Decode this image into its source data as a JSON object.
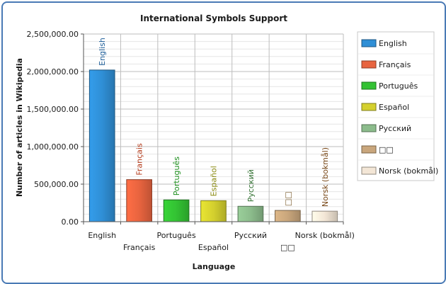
{
  "chart_data": {
    "type": "bar",
    "title": "International Symbols Support",
    "xlabel": "Language",
    "ylabel": "Number of articles in Wikipedia",
    "categories": [
      "English",
      "Français",
      "Português",
      "Español",
      "Русский",
      "□□",
      "Norsk (bokmål)"
    ],
    "values": [
      2020000,
      560000,
      290000,
      280000,
      205000,
      150000,
      140000
    ],
    "ylim": [
      0,
      2500000
    ],
    "yticks": [
      "0.00",
      "500,000.00",
      "1,000,000.00",
      "1,500,000.00",
      "2,000,000.00",
      "2,500,000.00"
    ],
    "grid": true,
    "legend_position": "right",
    "colors": [
      "#2f8fd6",
      "#e8643f",
      "#33c233",
      "#d4d02e",
      "#8cbc8c",
      "#c9a67c",
      "#f3e6d6"
    ],
    "label_colors": [
      "#1f5f9a",
      "#b33a1a",
      "#1e8f1e",
      "#8a8a10",
      "#2f6f2f",
      "#7a5a2a",
      "#7a4a1a"
    ],
    "data_labels": [
      "English",
      "Français",
      "Português",
      "Español",
      "Русский",
      "□□",
      "Norsk (bokmål)"
    ]
  }
}
